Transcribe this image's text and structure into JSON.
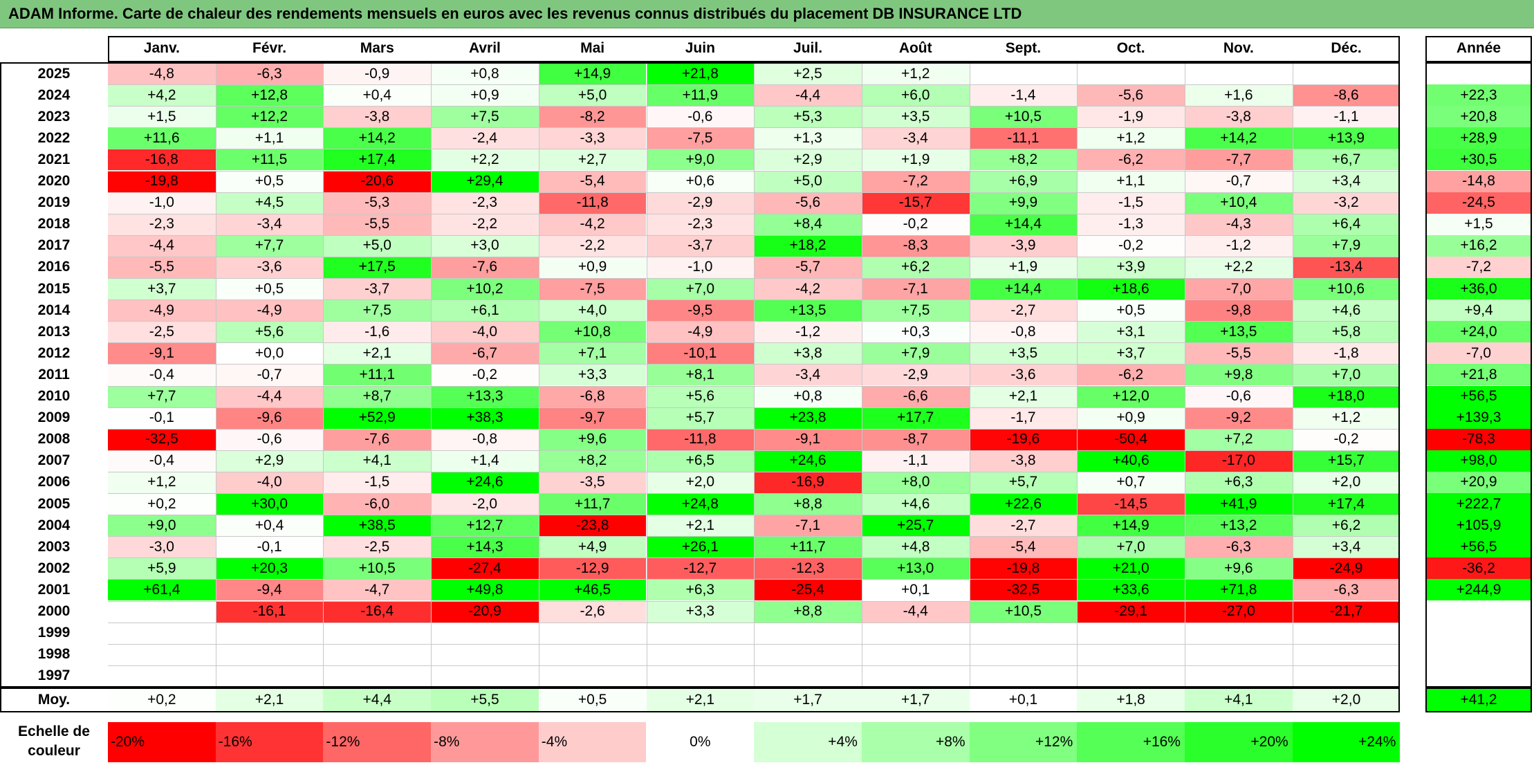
{
  "title": "ADAM Informe. Carte de chaleur des rendements mensuels en euros avec les revenus connus distribués du placement DB INSURANCE LTD",
  "chart_data": {
    "type": "heatmap",
    "columns": [
      "Janv.",
      "Févr.",
      "Mars",
      "Avril",
      "Mai",
      "Juin",
      "Juil.",
      "Août",
      "Sept.",
      "Oct.",
      "Nov.",
      "Déc."
    ],
    "year_column": "Année",
    "rows": [
      {
        "label": "2025",
        "values": [
          "-4,8",
          "-6,3",
          "-0,9",
          "+0,8",
          "+14,9",
          "+21,8",
          "+2,5",
          "+1,2",
          "",
          "",
          "",
          ""
        ],
        "year": ""
      },
      {
        "label": "2024",
        "values": [
          "+4,2",
          "+12,8",
          "+0,4",
          "+0,9",
          "+5,0",
          "+11,9",
          "-4,4",
          "+6,0",
          "-1,4",
          "-5,6",
          "+1,6",
          "-8,6"
        ],
        "year": "+22,3"
      },
      {
        "label": "2023",
        "values": [
          "+1,5",
          "+12,2",
          "-3,8",
          "+7,5",
          "-8,2",
          "-0,6",
          "+5,3",
          "+3,5",
          "+10,5",
          "-1,9",
          "-3,8",
          "-1,1"
        ],
        "year": "+20,8"
      },
      {
        "label": "2022",
        "values": [
          "+11,6",
          "+1,1",
          "+14,2",
          "-2,4",
          "-3,3",
          "-7,5",
          "+1,3",
          "-3,4",
          "-11,1",
          "+1,2",
          "+14,2",
          "+13,9"
        ],
        "year": "+28,9"
      },
      {
        "label": "2021",
        "values": [
          "-16,8",
          "+11,5",
          "+17,4",
          "+2,2",
          "+2,7",
          "+9,0",
          "+2,9",
          "+1,9",
          "+8,2",
          "-6,2",
          "-7,7",
          "+6,7"
        ],
        "year": "+30,5"
      },
      {
        "label": "2020",
        "values": [
          "-19,8",
          "+0,5",
          "-20,6",
          "+29,4",
          "-5,4",
          "+0,6",
          "+5,0",
          "-7,2",
          "+6,9",
          "+1,1",
          "-0,7",
          "+3,4"
        ],
        "year": "-14,8"
      },
      {
        "label": "2019",
        "values": [
          "-1,0",
          "+4,5",
          "-5,3",
          "-2,3",
          "-11,8",
          "-2,9",
          "-5,6",
          "-15,7",
          "+9,9",
          "-1,5",
          "+10,4",
          "-3,2"
        ],
        "year": "-24,5"
      },
      {
        "label": "2018",
        "values": [
          "-2,3",
          "-3,4",
          "-5,5",
          "-2,2",
          "-4,2",
          "-2,3",
          "+8,4",
          "-0,2",
          "+14,4",
          "-1,3",
          "-4,3",
          "+6,4"
        ],
        "year": "+1,5"
      },
      {
        "label": "2017",
        "values": [
          "-4,4",
          "+7,7",
          "+5,0",
          "+3,0",
          "-2,2",
          "-3,7",
          "+18,2",
          "-8,3",
          "-3,9",
          "-0,2",
          "-1,2",
          "+7,9"
        ],
        "year": "+16,2"
      },
      {
        "label": "2016",
        "values": [
          "-5,5",
          "-3,6",
          "+17,5",
          "-7,6",
          "+0,9",
          "-1,0",
          "-5,7",
          "+6,2",
          "+1,9",
          "+3,9",
          "+2,2",
          "-13,4"
        ],
        "year": "-7,2"
      },
      {
        "label": "2015",
        "values": [
          "+3,7",
          "+0,5",
          "-3,7",
          "+10,2",
          "-7,5",
          "+7,0",
          "-4,2",
          "-7,1",
          "+14,4",
          "+18,6",
          "-7,0",
          "+10,6"
        ],
        "year": "+36,0"
      },
      {
        "label": "2014",
        "values": [
          "-4,9",
          "-4,9",
          "+7,5",
          "+6,1",
          "+4,0",
          "-9,5",
          "+13,5",
          "+7,5",
          "-2,7",
          "+0,5",
          "-9,8",
          "+4,6"
        ],
        "year": "+9,4"
      },
      {
        "label": "2013",
        "values": [
          "-2,5",
          "+5,6",
          "-1,6",
          "-4,0",
          "+10,8",
          "-4,9",
          "-1,2",
          "+0,3",
          "-0,8",
          "+3,1",
          "+13,5",
          "+5,8"
        ],
        "year": "+24,0"
      },
      {
        "label": "2012",
        "values": [
          "-9,1",
          "+0,0",
          "+2,1",
          "-6,7",
          "+7,1",
          "-10,1",
          "+3,8",
          "+7,9",
          "+3,5",
          "+3,7",
          "-5,5",
          "-1,8"
        ],
        "year": "-7,0"
      },
      {
        "label": "2011",
        "values": [
          "-0,4",
          "-0,7",
          "+11,1",
          "-0,2",
          "+3,3",
          "+8,1",
          "-3,4",
          "-2,9",
          "-3,6",
          "-6,2",
          "+9,8",
          "+7,0"
        ],
        "year": "+21,8"
      },
      {
        "label": "2010",
        "values": [
          "+7,7",
          "-4,4",
          "+8,7",
          "+13,3",
          "-6,8",
          "+5,6",
          "+0,8",
          "-6,6",
          "+2,1",
          "+12,0",
          "-0,6",
          "+18,0"
        ],
        "year": "+56,5"
      },
      {
        "label": "2009",
        "values": [
          "-0,1",
          "-9,6",
          "+52,9",
          "+38,3",
          "-9,7",
          "+5,7",
          "+23,8",
          "+17,7",
          "-1,7",
          "+0,9",
          "-9,2",
          "+1,2"
        ],
        "year": "+139,3"
      },
      {
        "label": "2008",
        "values": [
          "-32,5",
          "-0,6",
          "-7,6",
          "-0,8",
          "+9,6",
          "-11,8",
          "-9,1",
          "-8,7",
          "-19,6",
          "-50,4",
          "+7,2",
          "-0,2"
        ],
        "year": "-78,3"
      },
      {
        "label": "2007",
        "values": [
          "-0,4",
          "+2,9",
          "+4,1",
          "+1,4",
          "+8,2",
          "+6,5",
          "+24,6",
          "-1,1",
          "-3,8",
          "+40,6",
          "-17,0",
          "+15,7"
        ],
        "year": "+98,0"
      },
      {
        "label": "2006",
        "values": [
          "+1,2",
          "-4,0",
          "-1,5",
          "+24,6",
          "-3,5",
          "+2,0",
          "-16,9",
          "+8,0",
          "+5,7",
          "+0,7",
          "+6,3",
          "+2,0"
        ],
        "year": "+20,9"
      },
      {
        "label": "2005",
        "values": [
          "+0,2",
          "+30,0",
          "-6,0",
          "-2,0",
          "+11,7",
          "+24,8",
          "+8,8",
          "+4,6",
          "+22,6",
          "-14,5",
          "+41,9",
          "+17,4"
        ],
        "year": "+222,7"
      },
      {
        "label": "2004",
        "values": [
          "+9,0",
          "+0,4",
          "+38,5",
          "+12,7",
          "-23,8",
          "+2,1",
          "-7,1",
          "+25,7",
          "-2,7",
          "+14,9",
          "+13,2",
          "+6,2"
        ],
        "year": "+105,9"
      },
      {
        "label": "2003",
        "values": [
          "-3,0",
          "-0,1",
          "-2,5",
          "+14,3",
          "+4,9",
          "+26,1",
          "+11,7",
          "+4,8",
          "-5,4",
          "+7,0",
          "-6,3",
          "+3,4"
        ],
        "year": "+56,5"
      },
      {
        "label": "2002",
        "values": [
          "+5,9",
          "+20,3",
          "+10,5",
          "-27,4",
          "-12,9",
          "-12,7",
          "-12,3",
          "+13,0",
          "-19,8",
          "+21,0",
          "+9,6",
          "-24,9"
        ],
        "year": "-36,2"
      },
      {
        "label": "2001",
        "values": [
          "+61,4",
          "-9,4",
          "-4,7",
          "+49,8",
          "+46,5",
          "+6,3",
          "-25,4",
          "+0,1",
          "-32,5",
          "+33,6",
          "+71,8",
          "-6,3"
        ],
        "year": "+244,9"
      },
      {
        "label": "2000",
        "values": [
          "",
          "-16,1",
          "-16,4",
          "-20,9",
          "-2,6",
          "+3,3",
          "+8,8",
          "-4,4",
          "+10,5",
          "-29,1",
          "-27,0",
          "-21,7"
        ],
        "year": ""
      },
      {
        "label": "1999",
        "values": [
          "",
          "",
          "",
          "",
          "",
          "",
          "",
          "",
          "",
          "",
          "",
          ""
        ],
        "year": ""
      },
      {
        "label": "1998",
        "values": [
          "",
          "",
          "",
          "",
          "",
          "",
          "",
          "",
          "",
          "",
          "",
          ""
        ],
        "year": ""
      },
      {
        "label": "1997",
        "values": [
          "",
          "",
          "",
          "",
          "",
          "",
          "",
          "",
          "",
          "",
          "",
          ""
        ],
        "year": ""
      }
    ],
    "average": {
      "label": "Moy.",
      "values": [
        "+0,2",
        "+2,1",
        "+4,4",
        "+5,5",
        "+0,5",
        "+2,1",
        "+1,7",
        "+1,7",
        "+0,1",
        "+1,8",
        "+4,1",
        "+2,0"
      ],
      "year": "+41,2"
    },
    "color_scale": {
      "label": "Echelle de couleur",
      "stops": [
        "-20%",
        "-16%",
        "-12%",
        "-8%",
        "-4%",
        "0%",
        "+4%",
        "+8%",
        "+12%",
        "+16%",
        "+20%",
        "+24%"
      ],
      "stop_values": [
        -20,
        -16,
        -12,
        -8,
        -4,
        0,
        4,
        8,
        12,
        16,
        20,
        24
      ],
      "negative_color": "#ff0000",
      "neutral_color": "#ffffff",
      "positive_color": "#00ff00"
    }
  }
}
